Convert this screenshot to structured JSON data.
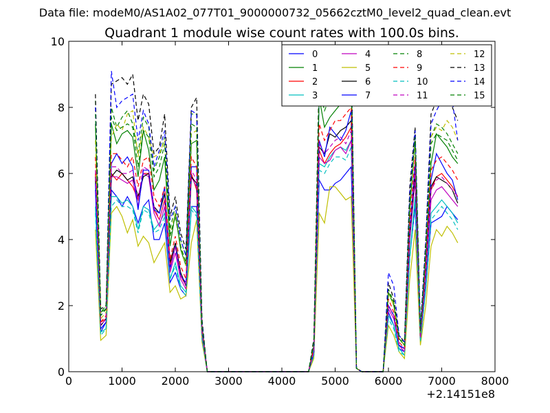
{
  "suptitle": "Data file: modeM0/AS1A02_077T01_9000000732_05662cztM0_level2_quad_clean.evt",
  "chart_data": {
    "type": "line",
    "title": "Quadrant 1 module wise count rates with 100.0s bins.",
    "xlabel": "",
    "ylabel": "",
    "xlim": [
      0,
      8000
    ],
    "ylim": [
      0,
      10
    ],
    "x_offset_label": "+2.14151e8",
    "xticks": [
      0,
      1000,
      2000,
      3000,
      4000,
      5000,
      6000,
      7000,
      8000
    ],
    "xtick_labels": [
      "0",
      "1000",
      "2000",
      "3000",
      "4000",
      "5000",
      "6000",
      "7000",
      "8000"
    ],
    "yticks": [
      0,
      2,
      4,
      6,
      8,
      10
    ],
    "ytick_labels": [
      "0",
      "2",
      "4",
      "6",
      "8",
      "10"
    ],
    "legend_position": "upper-right",
    "legend_columns": 4,
    "x": [
      500,
      600,
      700,
      800,
      900,
      1000,
      1100,
      1200,
      1300,
      1400,
      1500,
      1600,
      1700,
      1800,
      1900,
      2000,
      2100,
      2200,
      2300,
      2400,
      2500,
      2600,
      2700,
      2800,
      2900,
      3000,
      3100,
      3200,
      3300,
      3400,
      3500,
      3600,
      3700,
      3800,
      3900,
      4000,
      4100,
      4200,
      4300,
      4400,
      4500,
      4600,
      4700,
      4800,
      4900,
      5000,
      5100,
      5200,
      5300,
      5400,
      5500,
      5600,
      5700,
      5800,
      5900,
      6000,
      6100,
      6200,
      6300,
      6400,
      6500,
      6600,
      6700,
      6800,
      6900,
      7000,
      7100,
      7200,
      7300
    ],
    "series": [
      {
        "name": "0",
        "color": "#0000ff",
        "dash": "solid",
        "values": [
          5.5,
          1.2,
          1.5,
          5.5,
          5.3,
          5.0,
          5.3,
          5.0,
          4.5,
          5.0,
          5.2,
          4.0,
          4.0,
          4.5,
          2.7,
          3.0,
          2.5,
          2.3,
          5.0,
          5.0,
          1.0,
          0,
          0,
          0,
          0,
          0,
          0,
          0,
          0,
          0,
          0,
          0,
          0,
          0,
          0,
          0,
          0,
          0,
          0,
          0,
          0,
          0.5,
          5.8,
          5.5,
          5.5,
          5.7,
          5.8,
          6.0,
          6.2,
          0.1,
          0,
          0,
          0,
          0,
          0,
          1.8,
          1.4,
          0.7,
          0.6,
          3.5,
          5.0,
          1.0,
          2.5,
          4.5,
          4.6,
          4.7,
          5.0,
          4.8,
          4.6
        ]
      },
      {
        "name": "1",
        "color": "#008000",
        "dash": "solid",
        "values": [
          7.5,
          1.8,
          1.9,
          7.5,
          6.9,
          7.2,
          7.3,
          7.1,
          5.9,
          7.3,
          6.7,
          5.5,
          5.8,
          6.5,
          3.8,
          4.8,
          3.7,
          3.2,
          6.9,
          7.0,
          1.4,
          0,
          0,
          0,
          0,
          0,
          0,
          0,
          0,
          0,
          0,
          0,
          0,
          0,
          0,
          0,
          0,
          0,
          0,
          0,
          0,
          0.8,
          8.3,
          7.4,
          7.7,
          7.9,
          8.1,
          8.2,
          8.6,
          0.1,
          0,
          0,
          0,
          0,
          0,
          2.4,
          2.0,
          1.0,
          0.8,
          4.9,
          7.0,
          1.2,
          3.5,
          6.3,
          7.2,
          7.0,
          6.8,
          6.5,
          6.3
        ]
      },
      {
        "name": "2",
        "color": "#ff0000",
        "dash": "solid",
        "values": [
          6.0,
          1.5,
          1.6,
          6.0,
          5.8,
          6.0,
          5.8,
          5.6,
          5.2,
          6.0,
          6.0,
          4.9,
          4.6,
          5.2,
          3.2,
          3.8,
          2.9,
          2.6,
          6.0,
          5.5,
          1.2,
          0,
          0,
          0,
          0,
          0,
          0,
          0,
          0,
          0,
          0,
          0,
          0,
          0,
          0,
          0,
          0,
          0,
          0,
          0,
          0,
          0.6,
          6.7,
          6.3,
          6.6,
          6.8,
          6.9,
          7.1,
          7.4,
          0.1,
          0,
          0,
          0,
          0,
          0,
          2.0,
          1.7,
          0.8,
          0.7,
          4.1,
          6.0,
          1.0,
          3.0,
          5.5,
          5.9,
          6.0,
          5.8,
          5.6,
          5.3
        ]
      },
      {
        "name": "3",
        "color": "#00bfbf",
        "dash": "solid",
        "values": [
          5.0,
          1.2,
          1.3,
          5.3,
          5.3,
          5.1,
          5.2,
          5.0,
          4.3,
          5.0,
          4.9,
          4.3,
          4.5,
          4.8,
          2.8,
          3.3,
          2.6,
          2.4,
          5.0,
          4.8,
          1.1,
          0,
          0,
          0,
          0,
          0,
          0,
          0,
          0,
          0,
          0,
          0,
          0,
          0,
          0,
          0,
          0,
          0,
          0,
          0,
          0,
          0.5,
          6.3,
          6.2,
          6.5,
          6.7,
          6.8,
          6.7,
          7.0,
          0.1,
          0,
          0,
          0,
          0,
          0,
          1.7,
          1.4,
          0.7,
          0.5,
          3.5,
          5.3,
          0.9,
          2.6,
          4.8,
          5.0,
          5.2,
          5.0,
          4.8,
          4.5
        ]
      },
      {
        "name": "4",
        "color": "#bf00bf",
        "dash": "solid",
        "values": [
          5.8,
          1.4,
          1.6,
          5.9,
          5.9,
          5.8,
          5.7,
          5.8,
          5.0,
          6.0,
          5.9,
          4.8,
          4.4,
          5.0,
          3.0,
          3.6,
          2.8,
          2.5,
          5.9,
          5.6,
          1.2,
          0,
          0,
          0,
          0,
          0,
          0,
          0,
          0,
          0,
          0,
          0,
          0,
          0,
          0,
          0,
          0,
          0,
          0,
          0,
          0,
          0.6,
          6.5,
          6.3,
          6.4,
          6.7,
          6.8,
          6.6,
          7.0,
          0.1,
          0,
          0,
          0,
          0,
          0,
          1.9,
          1.6,
          0.8,
          0.6,
          4.0,
          5.8,
          1.0,
          2.9,
          5.2,
          5.5,
          5.6,
          5.4,
          5.2,
          5.0
        ]
      },
      {
        "name": "5",
        "color": "#bfbf00",
        "dash": "solid",
        "values": [
          4.3,
          0.95,
          1.1,
          4.8,
          5.0,
          4.7,
          4.2,
          4.6,
          3.8,
          4.1,
          3.9,
          3.3,
          3.6,
          3.9,
          2.4,
          2.6,
          2.2,
          2.3,
          3.9,
          4.6,
          0.9,
          0,
          0,
          0,
          0,
          0,
          0,
          0,
          0,
          0,
          0,
          0,
          0,
          0,
          0,
          0,
          0,
          0,
          0,
          0,
          0,
          0.4,
          4.8,
          4.5,
          5.6,
          5.6,
          5.4,
          5.2,
          5.3,
          0.1,
          0,
          0,
          0,
          0,
          0,
          1.4,
          1.1,
          0.6,
          0.4,
          2.8,
          4.3,
          0.8,
          2.0,
          3.8,
          4.3,
          4.1,
          4.4,
          4.2,
          3.9
        ]
      },
      {
        "name": "6",
        "color": "#000000",
        "dash": "solid",
        "values": [
          5.9,
          1.4,
          1.6,
          5.9,
          6.1,
          6.0,
          5.8,
          5.9,
          5.3,
          5.9,
          6.0,
          5.0,
          4.8,
          5.4,
          3.3,
          3.9,
          3.0,
          2.6,
          5.9,
          5.7,
          1.2,
          0,
          0,
          0,
          0,
          0,
          0,
          0,
          0,
          0,
          0,
          0,
          0,
          0,
          0,
          0,
          0,
          0,
          0,
          0,
          0,
          0.6,
          6.8,
          6.6,
          7.2,
          7.1,
          7.3,
          7.4,
          7.6,
          0.1,
          0,
          0,
          0,
          0,
          0,
          2.0,
          1.7,
          0.8,
          0.7,
          4.1,
          6.0,
          1.0,
          3.0,
          5.6,
          5.9,
          5.8,
          5.7,
          5.5,
          5.1
        ]
      },
      {
        "name": "7",
        "color": "#0000ff",
        "dash": "solid",
        "values": [
          5.7,
          1.3,
          1.5,
          6.3,
          6.6,
          6.3,
          6.5,
          6.2,
          4.9,
          6.1,
          6.1,
          4.9,
          4.8,
          5.6,
          3.1,
          3.8,
          2.9,
          2.7,
          6.2,
          6.2,
          1.2,
          0,
          0,
          0,
          0,
          0,
          0,
          0,
          0,
          0,
          0,
          0,
          0,
          0,
          0,
          0,
          0,
          0,
          0,
          0,
          0,
          0.6,
          7.0,
          6.5,
          7.4,
          7.2,
          7.0,
          7.3,
          7.9,
          0.1,
          0,
          0,
          0,
          0,
          0,
          2.0,
          1.7,
          0.8,
          0.7,
          4.3,
          6.3,
          1.0,
          3.1,
          5.8,
          6.6,
          6.3,
          6.0,
          5.8,
          5.2
        ]
      },
      {
        "name": "8",
        "color": "#008000",
        "dash": "dashed",
        "values": [
          8.2,
          1.8,
          2.0,
          8.0,
          7.4,
          7.7,
          7.9,
          7.5,
          6.6,
          7.7,
          7.4,
          6.1,
          6.5,
          7.1,
          4.3,
          5.0,
          4.0,
          3.5,
          7.8,
          7.8,
          1.5,
          0,
          0,
          0,
          0,
          0,
          0,
          0,
          0,
          0,
          0,
          0,
          0,
          0,
          0,
          0,
          0,
          0,
          0,
          0,
          0,
          0.9,
          9.0,
          8.1,
          8.6,
          8.9,
          9.0,
          9.2,
          9.4,
          0.1,
          0,
          0,
          0,
          0,
          0,
          2.5,
          2.1,
          1.0,
          0.9,
          5.3,
          7.3,
          1.3,
          3.8,
          7.1,
          7.5,
          7.4,
          7.2,
          6.9,
          6.6
        ]
      },
      {
        "name": "9",
        "color": "#ff0000",
        "dash": "dashed",
        "values": [
          6.5,
          1.5,
          1.7,
          6.6,
          6.6,
          6.4,
          6.2,
          6.5,
          5.6,
          6.4,
          6.5,
          5.3,
          5.0,
          5.6,
          3.4,
          4.1,
          3.2,
          2.8,
          6.5,
          6.2,
          1.3,
          0,
          0,
          0,
          0,
          0,
          0,
          0,
          0,
          0,
          0,
          0,
          0,
          0,
          0,
          0,
          0,
          0,
          0,
          0,
          0,
          0.7,
          7.5,
          7.0,
          7.3,
          7.6,
          7.6,
          7.8,
          8.0,
          0.1,
          0,
          0,
          0,
          0,
          0,
          2.2,
          1.8,
          0.9,
          0.7,
          4.5,
          6.5,
          1.1,
          3.3,
          6.1,
          6.4,
          6.5,
          6.3,
          6.1,
          5.8
        ]
      },
      {
        "name": "10",
        "color": "#00bfbf",
        "dash": "dashed",
        "values": [
          4.8,
          1.1,
          1.3,
          5.0,
          5.2,
          5.0,
          5.0,
          4.9,
          4.2,
          4.9,
          4.8,
          4.2,
          4.3,
          4.7,
          2.8,
          3.2,
          2.5,
          2.3,
          4.9,
          4.7,
          1.0,
          0,
          0,
          0,
          0,
          0,
          0,
          0,
          0,
          0,
          0,
          0,
          0,
          0,
          0,
          0,
          0,
          0,
          0,
          0,
          0,
          0.5,
          6.1,
          6.0,
          6.3,
          6.5,
          6.5,
          6.4,
          6.8,
          0.1,
          0,
          0,
          0,
          0,
          0,
          1.6,
          1.3,
          0.6,
          0.5,
          3.4,
          5.1,
          0.9,
          2.5,
          4.6,
          4.8,
          5.0,
          4.8,
          4.6,
          4.3
        ]
      },
      {
        "name": "11",
        "color": "#bf00bf",
        "dash": "dashed",
        "values": [
          6.1,
          1.4,
          1.6,
          6.2,
          6.2,
          6.0,
          6.0,
          6.1,
          5.2,
          6.2,
          6.1,
          5.0,
          4.6,
          5.2,
          3.1,
          3.8,
          2.9,
          2.6,
          6.1,
          5.8,
          1.2,
          0,
          0,
          0,
          0,
          0,
          0,
          0,
          0,
          0,
          0,
          0,
          0,
          0,
          0,
          0,
          0,
          0,
          0,
          0,
          0,
          0.6,
          6.9,
          6.6,
          6.8,
          7.0,
          7.1,
          6.9,
          7.3,
          0.1,
          0,
          0,
          0,
          0,
          0,
          2.0,
          1.7,
          0.8,
          0.6,
          4.2,
          6.1,
          1.0,
          3.0,
          5.5,
          5.8,
          5.9,
          5.7,
          5.5,
          5.3
        ]
      },
      {
        "name": "12",
        "color": "#bfbf00",
        "dash": "dashed",
        "values": [
          7.0,
          1.6,
          1.8,
          7.1,
          7.5,
          7.3,
          7.8,
          7.9,
          6.5,
          7.4,
          7.1,
          6.5,
          6.6,
          7.0,
          4.1,
          4.8,
          3.8,
          3.2,
          7.2,
          7.3,
          1.4,
          0,
          0,
          0,
          0,
          0,
          0,
          0,
          0,
          0,
          0,
          0,
          0,
          0,
          0,
          0,
          0,
          0,
          0,
          0,
          0,
          0.9,
          9.0,
          8.8,
          9.6,
          9.4,
          9.5,
          9.0,
          9.3,
          0.1,
          0,
          0,
          0,
          0,
          0,
          2.4,
          2.0,
          1.0,
          0.8,
          5.1,
          7.0,
          1.2,
          3.6,
          7.1,
          7.4,
          7.3,
          7.6,
          7.4,
          7.0
        ]
      },
      {
        "name": "13",
        "color": "#000000",
        "dash": "dashed",
        "values": [
          8.4,
          1.9,
          2.0,
          8.7,
          8.8,
          8.9,
          8.7,
          9.0,
          7.6,
          8.4,
          8.1,
          6.6,
          6.8,
          7.8,
          4.7,
          5.3,
          4.2,
          3.7,
          8.0,
          8.3,
          1.6,
          0,
          0,
          0,
          0,
          0,
          0,
          0,
          0,
          0,
          0,
          0,
          0,
          0,
          0,
          0,
          0,
          0,
          0,
          0,
          0,
          1.0,
          9.1,
          8.8,
          9.2,
          9.3,
          9.4,
          9.6,
          9.8,
          0.1,
          0,
          0,
          0,
          0,
          0,
          2.7,
          2.2,
          1.1,
          0.9,
          5.6,
          7.4,
          1.3,
          4.0,
          7.8,
          8.2,
          8.5,
          8.3,
          8.0,
          7.6
        ]
      },
      {
        "name": "14",
        "color": "#0000ff",
        "dash": "dashed",
        "values": [
          8.0,
          1.7,
          1.9,
          9.1,
          8.0,
          8.2,
          8.3,
          8.4,
          7.0,
          7.9,
          7.5,
          6.2,
          6.7,
          7.3,
          4.6,
          5.0,
          4.0,
          3.5,
          7.9,
          7.8,
          1.5,
          0,
          0,
          0,
          0,
          0,
          0,
          0,
          0,
          0,
          0,
          0,
          0,
          0,
          0,
          0,
          0,
          0,
          0,
          0,
          0,
          0.9,
          8.5,
          8.2,
          8.7,
          8.8,
          8.9,
          9.1,
          9.5,
          0.1,
          0,
          0,
          0,
          0,
          0,
          3.0,
          2.6,
          1.1,
          0.9,
          5.4,
          7.3,
          1.3,
          3.9,
          7.5,
          7.9,
          8.2,
          8.6,
          8.2,
          7.0
        ]
      },
      {
        "name": "15",
        "color": "#008000",
        "dash": "dashed",
        "values": [
          7.8,
          1.7,
          1.9,
          7.7,
          7.3,
          7.4,
          7.5,
          7.4,
          6.2,
          7.3,
          7.1,
          5.9,
          6.2,
          6.9,
          4.1,
          4.7,
          3.8,
          3.3,
          7.5,
          7.4,
          1.4,
          0,
          0,
          0,
          0,
          0,
          0,
          0,
          0,
          0,
          0,
          0,
          0,
          0,
          0,
          0,
          0,
          0,
          0,
          0,
          0,
          0.9,
          8.6,
          7.9,
          8.3,
          8.6,
          8.7,
          8.9,
          9.1,
          0.1,
          0,
          0,
          0,
          0,
          0,
          2.4,
          2.1,
          1.0,
          0.8,
          5.1,
          7.1,
          1.2,
          3.7,
          6.9,
          7.2,
          7.1,
          7.0,
          6.7,
          6.4
        ]
      }
    ]
  }
}
